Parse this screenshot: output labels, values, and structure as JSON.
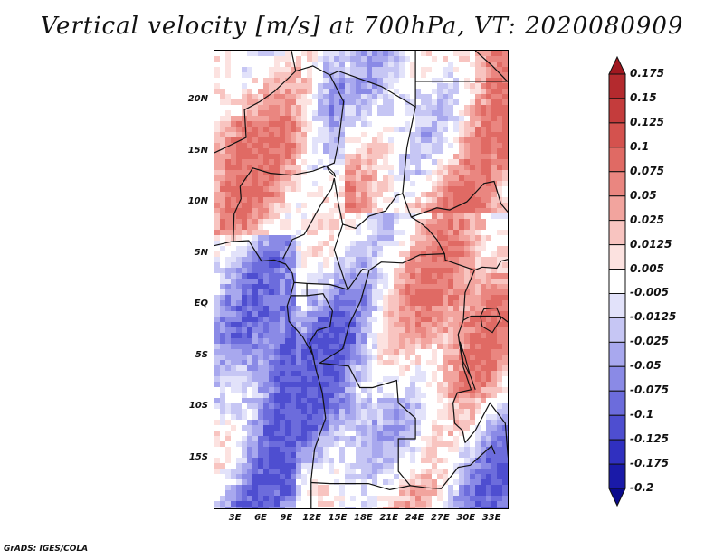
{
  "title": "Vertical velocity [m/s] at 700hPa, VT: 2020080909",
  "map": {
    "variable": "Vertical velocity",
    "units": "m/s",
    "level": "700hPa",
    "valid_time": "2020080909",
    "latitude_labels": [
      "20N",
      "15N",
      "10N",
      "5N",
      "EQ",
      "5S",
      "10S",
      "15S"
    ],
    "longitude_labels": [
      "3E",
      "6E",
      "9E",
      "12E",
      "15E",
      "18E",
      "21E",
      "24E",
      "27E",
      "30E",
      "33E"
    ],
    "latitude_values": [
      20,
      15,
      10,
      5,
      0,
      -5,
      -10,
      -15
    ],
    "longitude_values": [
      3,
      6,
      9,
      12,
      15,
      18,
      21,
      24,
      27,
      30,
      33
    ]
  },
  "colorbar": {
    "labels": [
      "0.175",
      "0.15",
      "0.125",
      "0.1",
      "0.075",
      "0.05",
      "0.025",
      "0.0125",
      "0.005",
      "-0.005",
      "-0.0125",
      "-0.025",
      "-0.05",
      "-0.075",
      "-0.1",
      "-0.125",
      "-0.175",
      "-0.2"
    ],
    "colors": [
      "#a01820",
      "#b42a2e",
      "#c43c3c",
      "#d4524e",
      "#e06a64",
      "#ea8680",
      "#f2a49e",
      "#f8c4c0",
      "#fce2e0",
      "#ffffff",
      "#e2e2fa",
      "#c6c6f4",
      "#a8a8ee",
      "#8a8ae6",
      "#6c6cdc",
      "#4e4ed0",
      "#3030c0",
      "#1a1aa8",
      "#0a0a8c"
    ]
  },
  "credit": "GrADS: IGES/COLA"
}
